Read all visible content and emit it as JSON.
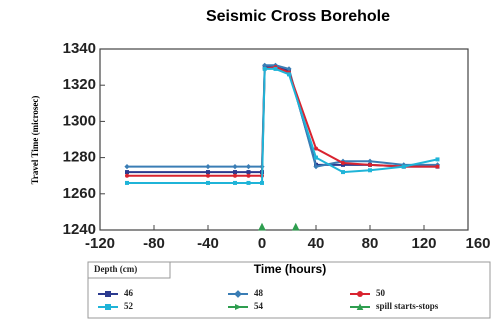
{
  "chart_data": {
    "type": "line",
    "title": "Seismic Cross Borehole",
    "xlabel": "Time (hours)",
    "ylabel": "Travel Time (microsec)",
    "legend_title": "Depth (cm)",
    "x": [
      -100,
      -40,
      -20,
      -10,
      0,
      2,
      10,
      20,
      40,
      60,
      80,
      105,
      130
    ],
    "xlim": [
      -120,
      160
    ],
    "xticks": [
      -120,
      -80,
      -40,
      0,
      40,
      80,
      120,
      160
    ],
    "negative_tick_color": "#e02525",
    "ylim": [
      1240,
      1340
    ],
    "yticks": [
      1240,
      1260,
      1280,
      1300,
      1320,
      1340
    ],
    "series": [
      {
        "name": "46",
        "color": "#2b3a8f",
        "marker": "square",
        "values": [
          1272,
          1272,
          1272,
          1272,
          1272,
          1330,
          1330,
          1328,
          1276,
          1276,
          1276,
          1275,
          1275
        ]
      },
      {
        "name": "48",
        "color": "#3a7db5",
        "marker": "diamond",
        "values": [
          1275,
          1275,
          1275,
          1275,
          1275,
          1331,
          1331,
          1329,
          1275,
          1278,
          1278,
          1276,
          1276
        ]
      },
      {
        "name": "50",
        "color": "#d9232f",
        "marker": "circle",
        "values": [
          1270,
          1270,
          1270,
          1270,
          1270,
          1329,
          1330,
          1327,
          1285,
          1277,
          1276,
          1275,
          1275
        ]
      },
      {
        "name": "52",
        "color": "#1fb4d8",
        "marker": "square",
        "values": [
          1266,
          1266,
          1266,
          1266,
          1266,
          1329,
          1329,
          1326,
          1280,
          1272,
          1273,
          1275,
          1279
        ]
      },
      {
        "name": "54",
        "color": "#2e9e4f",
        "marker": "triangle-right",
        "values": [
          null,
          null,
          null,
          null,
          null,
          null,
          null,
          null,
          null,
          null,
          null,
          null,
          null
        ]
      }
    ],
    "spill": {
      "name": "spill starts-stops",
      "color": "#2e9e4f",
      "marker": "triangle",
      "x": [
        0,
        25
      ],
      "values": [
        1240,
        1240
      ]
    }
  }
}
